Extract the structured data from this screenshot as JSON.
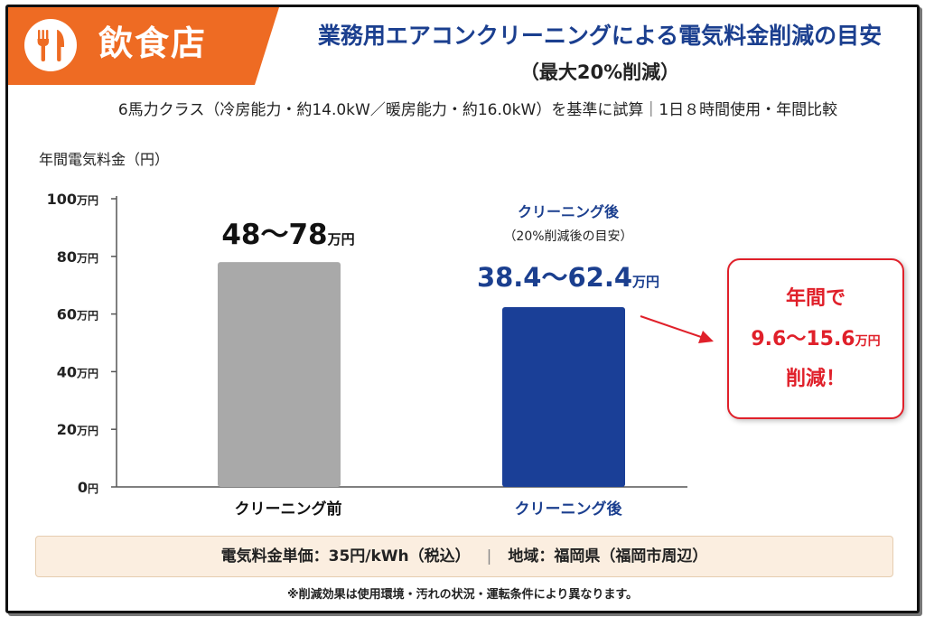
{
  "header": {
    "category": "飲食店",
    "icon": "fork-knife-icon",
    "title": "業務用エアコンクリーニングによる電気料金削減の目安",
    "subtitle": "（最大20%削減）",
    "condition": "6馬力クラス（冷房能力・約14.0kW／暖房能力・約16.0kW）を基準に試算｜1日８時間使用・年間比較"
  },
  "colors": {
    "accent_orange": "#ee6b23",
    "title_blue": "#1b3f8f",
    "bar_before": "#a9a9a9",
    "bar_after": "#1a3f97",
    "callout_red": "#e0202a",
    "info_band_bg": "#fbeee0"
  },
  "chart_data": {
    "type": "bar",
    "ylabel": "年間電気料金（円）",
    "ylim": [
      0,
      100
    ],
    "yticks": [
      {
        "value": 0,
        "num": "0",
        "unit": "円"
      },
      {
        "value": 20,
        "num": "20",
        "unit": "万円"
      },
      {
        "value": 40,
        "num": "40",
        "unit": "万円"
      },
      {
        "value": 60,
        "num": "60",
        "unit": "万円"
      },
      {
        "value": 80,
        "num": "80",
        "unit": "万円"
      },
      {
        "value": 100,
        "num": "100",
        "unit": "万円"
      }
    ],
    "categories": [
      "クリーニング前",
      "クリーニング後"
    ],
    "values": [
      78,
      62.4
    ],
    "bars": [
      {
        "category": "クリーニング前",
        "value": 78,
        "range_label": "48～78",
        "range_unit": "万円"
      },
      {
        "category": "クリーニング後",
        "value": 62.4,
        "range_label": "38.4～62.4",
        "range_unit": "万円",
        "title": "クリーニング後",
        "note": "（20%削減後の目安）"
      }
    ],
    "grid": false,
    "legend": "none"
  },
  "callout": {
    "line1": "年間で",
    "amount": "9.6～15.6",
    "unit": "万円",
    "line3": "削減！"
  },
  "info": {
    "price": "電気料金単価：35円/kWh（税込）",
    "separator": "|",
    "region": "地域：福岡県（福岡市周辺）"
  },
  "disclaimer": "※削減効果は使用環境・汚れの状況・運転条件により異なります。"
}
